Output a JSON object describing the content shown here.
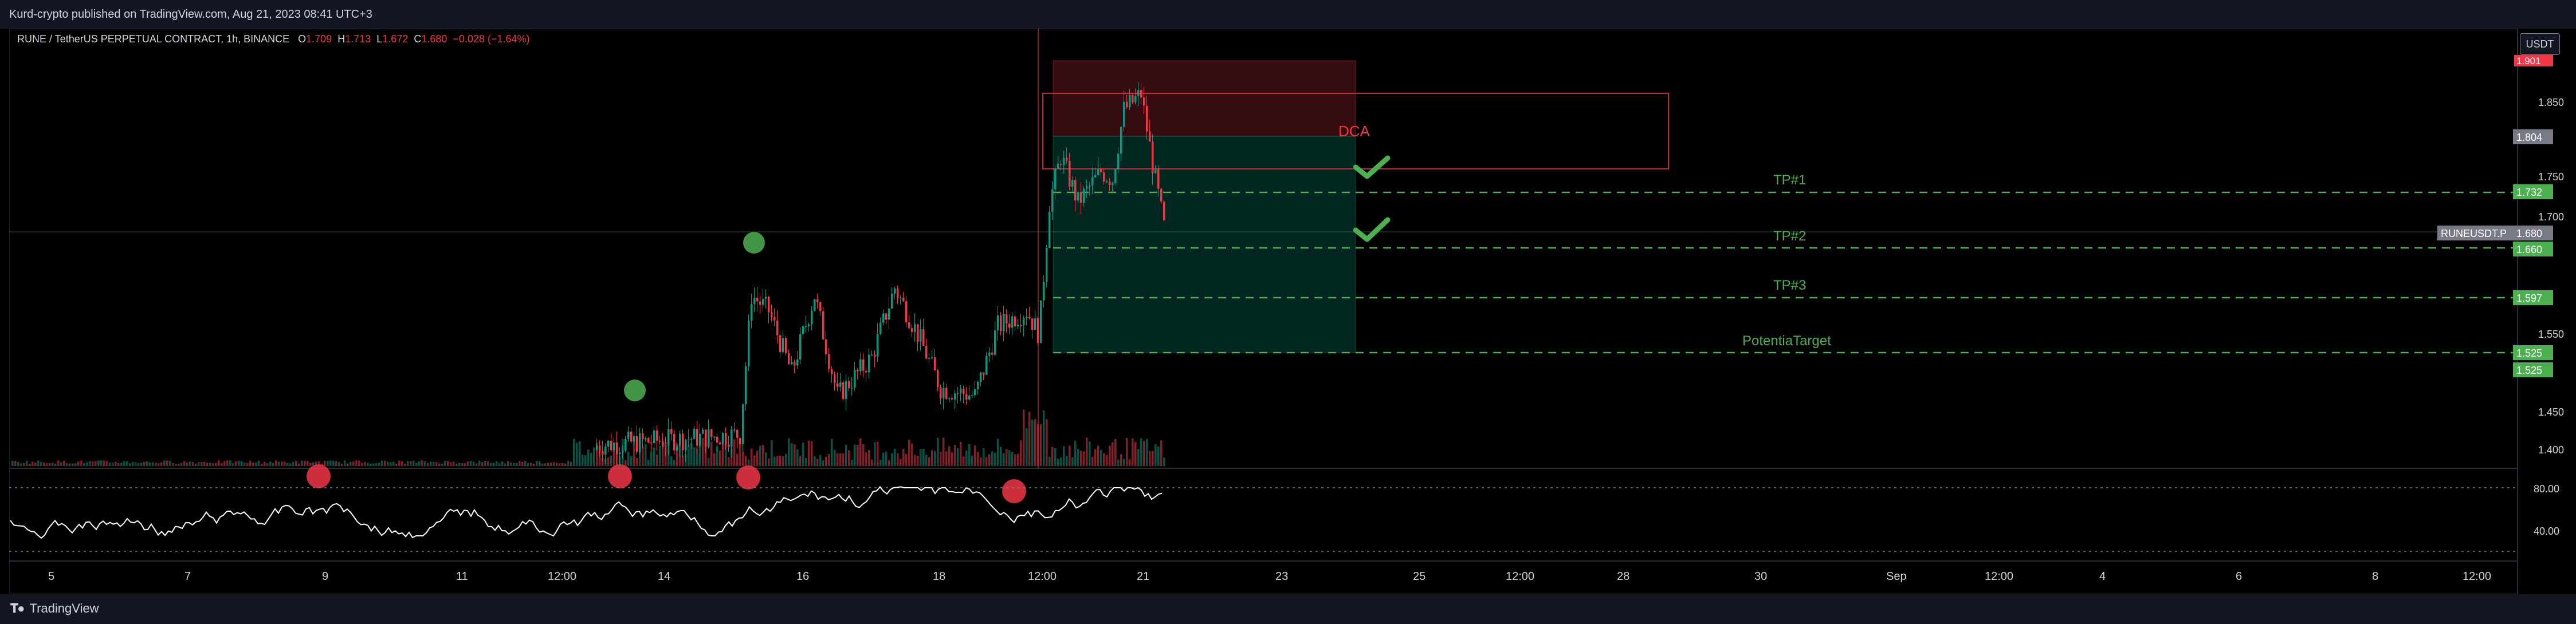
{
  "header": {
    "attribution": "Kurd-crypto published on TradingView.com, Aug 21, 2023 08:41 UTC+3"
  },
  "legend": {
    "symbol": "RUNE / TetherUS PERPETUAL CONTRACT, 1h, BINANCE",
    "open_label": "O",
    "open": "1.709",
    "high_label": "H",
    "high": "1.713",
    "low_label": "L",
    "low": "1.672",
    "close_label": "C",
    "close": "1.680",
    "change": "−0.028 (−1.64%)"
  },
  "currency": "USDT",
  "price_scale": {
    "ticks": [
      "1.850",
      "1.750",
      "1.700",
      "1.550",
      "1.450",
      "1.400"
    ],
    "rsi_ticks": [
      "80.00",
      "40.00"
    ],
    "labels": {
      "top": "1.901",
      "dca": "1.804",
      "tp1": "1.732",
      "symbol_tag": "RUNEUSDT.P",
      "last": "1.680",
      "tp2": "1.660",
      "tp3": "1.597",
      "pt1": "1.525",
      "pt2": "1.525"
    }
  },
  "annotations": {
    "dca": "DCA",
    "tp1": "TP#1",
    "tp2": "TP#2",
    "tp3": "TP#3",
    "potential": "PotentiaTarget"
  },
  "time_axis": [
    "5",
    "7",
    "9",
    "11",
    "12:00",
    "14",
    "16",
    "18",
    "12:00",
    "21",
    "23",
    "25",
    "12:00",
    "28",
    "30",
    "Sep",
    "12:00",
    "4",
    "6",
    "8",
    "12:00"
  ],
  "colors": {
    "up": "#089981",
    "down": "#f23645",
    "green_line": "#4caf50",
    "label_green": "#4caf50",
    "label_red": "#f23645",
    "label_grey": "#787b86"
  },
  "footer": {
    "brand": "TradingView"
  }
}
